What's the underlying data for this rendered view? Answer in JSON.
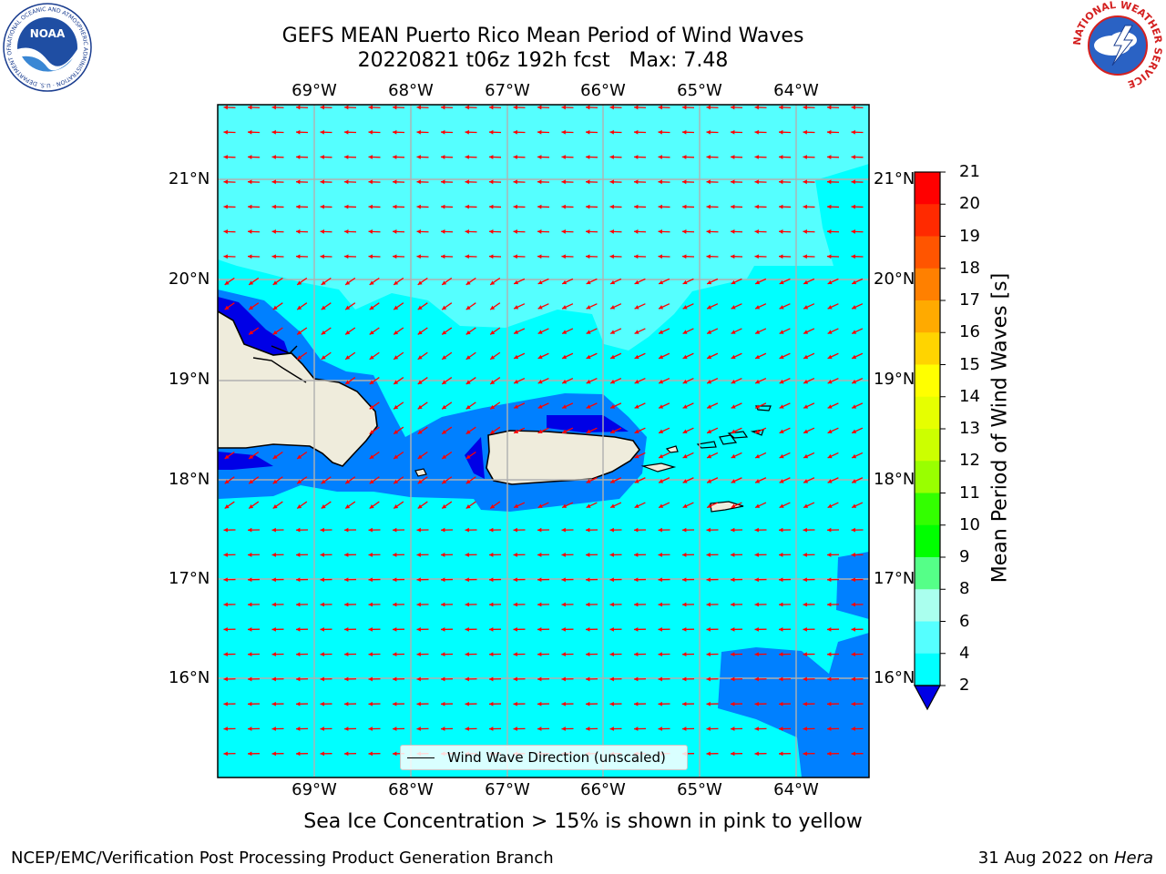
{
  "header": {
    "title_line1": "GEFS MEAN Puerto Rico Mean Period of Wind Waves",
    "title_line2": "20220821 t06z 192h fcst   Max: 7.48"
  },
  "logos": {
    "noaa": {
      "name": "NOAA",
      "ring_text": "NATIONAL OCEANIC AND ATMOSPHERIC ADMINISTRATION · U.S. DEPARTMENT OF COMMERCE"
    },
    "nws": {
      "ring_text": "NATIONAL WEATHER SERVICE"
    }
  },
  "map": {
    "longitude_labels": [
      "69°W",
      "68°W",
      "67°W",
      "66°W",
      "65°W",
      "64°W"
    ],
    "latitude_labels": [
      "21°N",
      "20°N",
      "19°N",
      "18°N",
      "17°N",
      "16°N"
    ],
    "legend_label": "Wind Wave Direction (unscaled)",
    "land_color": "#efecdc",
    "arrow_color": "#ff0000"
  },
  "colorbar": {
    "label": "Mean Period of Wind Waves [s]",
    "ticks": [
      "21",
      "20",
      "19",
      "18",
      "17",
      "16",
      "15",
      "14",
      "13",
      "12",
      "11",
      "10",
      "9",
      "8",
      "6",
      "4",
      "2"
    ],
    "band_colors": [
      "#ff0000",
      "#ff2a00",
      "#ff5500",
      "#ff8000",
      "#ffaa00",
      "#ffd400",
      "#ffff00",
      "#e6ff00",
      "#ccff00",
      "#99ff00",
      "#33ff00",
      "#00ff00",
      "#55ff88",
      "#aaffee",
      "#55ffff",
      "#00ffff",
      "#0080ff"
    ],
    "under_color": "#0000e6"
  },
  "footer": {
    "sea_ice_note": "Sea Ice Concentration > 15% is shown in pink to yellow",
    "left": "NCEP/EMC/Verification Post Processing Product Generation Branch",
    "right_date": "31 Aug 2022 on",
    "right_host": "Hera"
  }
}
